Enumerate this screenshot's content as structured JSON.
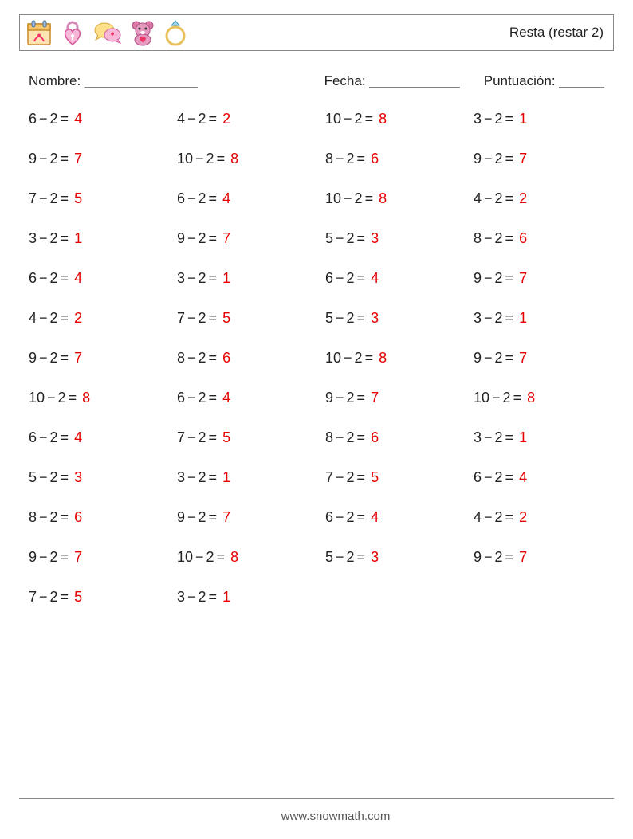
{
  "title": "Resta (restar 2)",
  "colors": {
    "answer": "#e60000",
    "text": "#222222",
    "border": "#888888",
    "background": "#ffffff"
  },
  "typography": {
    "body_fontsize_pt": 13,
    "title_fontsize_pt": 13
  },
  "meta": {
    "name_label": "Nombre: _______________",
    "date_label": "Fecha: ____________",
    "score_label": "Puntuación: ______"
  },
  "icons": [
    "calendar-icon",
    "heart-lock-icon",
    "speech-bubbles-icon",
    "teddy-bear-icon",
    "ring-icon"
  ],
  "worksheet": {
    "type": "table",
    "columns": 4,
    "rows": 13,
    "operation": "−",
    "subtrahend": 2,
    "problems": [
      [
        {
          "a": 6,
          "b": 2,
          "ans": 4
        },
        {
          "a": 4,
          "b": 2,
          "ans": 2
        },
        {
          "a": 10,
          "b": 2,
          "ans": 8
        },
        {
          "a": 3,
          "b": 2,
          "ans": 1
        }
      ],
      [
        {
          "a": 9,
          "b": 2,
          "ans": 7
        },
        {
          "a": 10,
          "b": 2,
          "ans": 8
        },
        {
          "a": 8,
          "b": 2,
          "ans": 6
        },
        {
          "a": 9,
          "b": 2,
          "ans": 7
        }
      ],
      [
        {
          "a": 7,
          "b": 2,
          "ans": 5
        },
        {
          "a": 6,
          "b": 2,
          "ans": 4
        },
        {
          "a": 10,
          "b": 2,
          "ans": 8
        },
        {
          "a": 4,
          "b": 2,
          "ans": 2
        }
      ],
      [
        {
          "a": 3,
          "b": 2,
          "ans": 1
        },
        {
          "a": 9,
          "b": 2,
          "ans": 7
        },
        {
          "a": 5,
          "b": 2,
          "ans": 3
        },
        {
          "a": 8,
          "b": 2,
          "ans": 6
        }
      ],
      [
        {
          "a": 6,
          "b": 2,
          "ans": 4
        },
        {
          "a": 3,
          "b": 2,
          "ans": 1
        },
        {
          "a": 6,
          "b": 2,
          "ans": 4
        },
        {
          "a": 9,
          "b": 2,
          "ans": 7
        }
      ],
      [
        {
          "a": 4,
          "b": 2,
          "ans": 2
        },
        {
          "a": 7,
          "b": 2,
          "ans": 5
        },
        {
          "a": 5,
          "b": 2,
          "ans": 3
        },
        {
          "a": 3,
          "b": 2,
          "ans": 1
        }
      ],
      [
        {
          "a": 9,
          "b": 2,
          "ans": 7
        },
        {
          "a": 8,
          "b": 2,
          "ans": 6
        },
        {
          "a": 10,
          "b": 2,
          "ans": 8
        },
        {
          "a": 9,
          "b": 2,
          "ans": 7
        }
      ],
      [
        {
          "a": 10,
          "b": 2,
          "ans": 8
        },
        {
          "a": 6,
          "b": 2,
          "ans": 4
        },
        {
          "a": 9,
          "b": 2,
          "ans": 7
        },
        {
          "a": 10,
          "b": 2,
          "ans": 8
        }
      ],
      [
        {
          "a": 6,
          "b": 2,
          "ans": 4
        },
        {
          "a": 7,
          "b": 2,
          "ans": 5
        },
        {
          "a": 8,
          "b": 2,
          "ans": 6
        },
        {
          "a": 3,
          "b": 2,
          "ans": 1
        }
      ],
      [
        {
          "a": 5,
          "b": 2,
          "ans": 3
        },
        {
          "a": 3,
          "b": 2,
          "ans": 1
        },
        {
          "a": 7,
          "b": 2,
          "ans": 5
        },
        {
          "a": 6,
          "b": 2,
          "ans": 4
        }
      ],
      [
        {
          "a": 8,
          "b": 2,
          "ans": 6
        },
        {
          "a": 9,
          "b": 2,
          "ans": 7
        },
        {
          "a": 6,
          "b": 2,
          "ans": 4
        },
        {
          "a": 4,
          "b": 2,
          "ans": 2
        }
      ],
      [
        {
          "a": 9,
          "b": 2,
          "ans": 7
        },
        {
          "a": 10,
          "b": 2,
          "ans": 8
        },
        {
          "a": 5,
          "b": 2,
          "ans": 3
        },
        {
          "a": 9,
          "b": 2,
          "ans": 7
        }
      ],
      [
        {
          "a": 7,
          "b": 2,
          "ans": 5
        },
        {
          "a": 3,
          "b": 2,
          "ans": 1
        },
        null,
        null
      ]
    ]
  },
  "footer": "www.snowmath.com"
}
